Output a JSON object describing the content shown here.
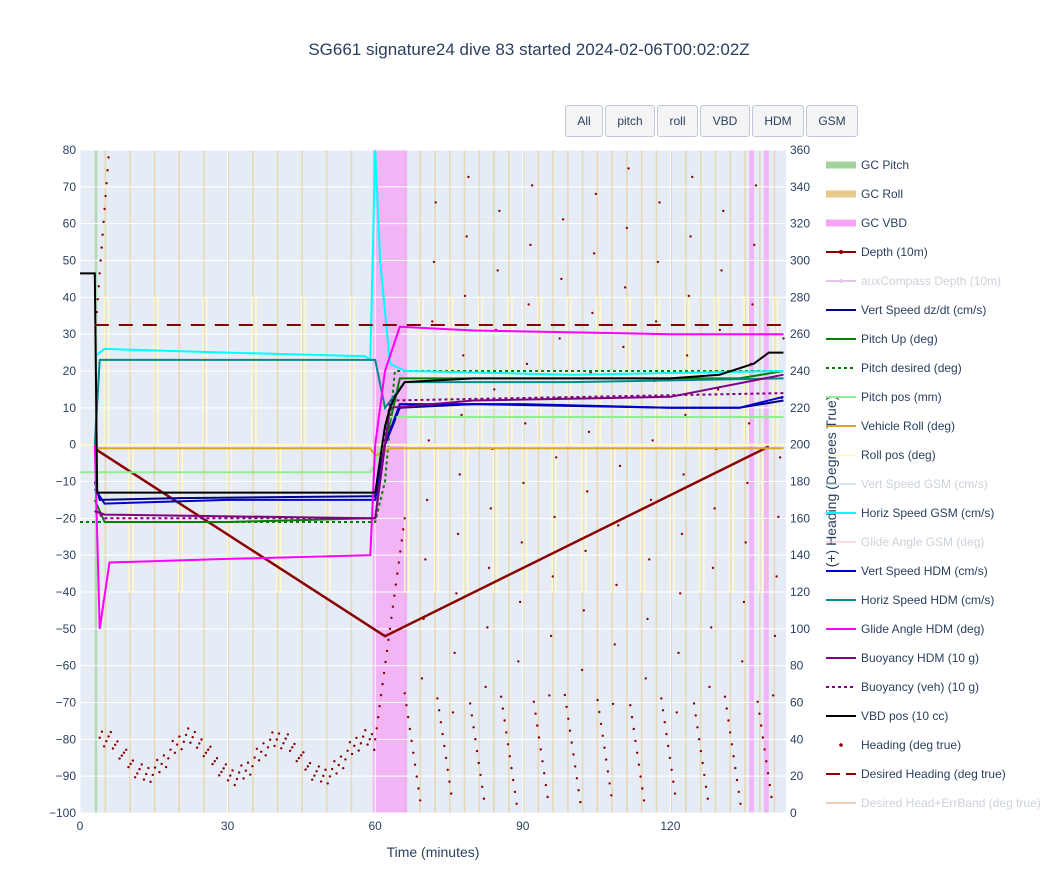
{
  "title": "SG661 signature24 dive 83 started 2024-02-06T00:02:02Z",
  "buttons": [
    {
      "label": "All",
      "w": 38
    },
    {
      "label": "pitch",
      "w": 50
    },
    {
      "label": "roll",
      "w": 41
    },
    {
      "label": "VBD",
      "w": 50
    },
    {
      "label": "HDM",
      "w": 52
    },
    {
      "label": "GSM",
      "w": 52
    }
  ],
  "chart_data": {
    "type": "line",
    "xlabel": "Time (minutes)",
    "ylabel_right": "(+) Heading (Degrees True)",
    "xlim": [
      0,
      143.5
    ],
    "ylim": [
      -100,
      80
    ],
    "y2lim": [
      0,
      360
    ],
    "xticks": [
      0,
      30,
      60,
      90,
      120
    ],
    "yticks": [
      -100,
      -90,
      -80,
      -70,
      -60,
      -50,
      -40,
      -30,
      -20,
      -10,
      0,
      10,
      20,
      30,
      40,
      50,
      60,
      70,
      80
    ],
    "y2ticks": [
      0,
      20,
      40,
      60,
      80,
      100,
      120,
      140,
      160,
      180,
      200,
      220,
      240,
      260,
      280,
      300,
      320,
      340,
      360
    ],
    "legend_position": "right",
    "series": [
      {
        "name": "GC Pitch",
        "color": "#a3d4a0",
        "style": "band",
        "visible": true
      },
      {
        "name": "GC Roll",
        "color": "#e8c98a",
        "style": "band",
        "visible": true
      },
      {
        "name": "GC VBD",
        "color": "#f4a6f4",
        "style": "band",
        "visible": true
      },
      {
        "name": "Depth (10m)",
        "color": "#8b0000",
        "style": "line-marker",
        "visible": true,
        "x": [
          3.5,
          62,
          140
        ],
        "y": [
          -1.5,
          -52,
          -0.5
        ]
      },
      {
        "name": "auxCompass Depth (10m)",
        "color": "#c58be0",
        "style": "line-marker",
        "visible": false
      },
      {
        "name": "Vert Speed dz/dt (cm/s)",
        "color": "#00008b",
        "style": "line",
        "visible": true,
        "x": [
          3,
          4,
          20,
          59,
          60,
          62,
          65,
          80,
          120,
          134,
          143
        ],
        "y": [
          -10,
          -15,
          -14.5,
          -14,
          -14,
          0,
          10,
          11,
          10,
          10,
          12
        ]
      },
      {
        "name": "Pitch Up (deg)",
        "color": "#008000",
        "style": "line",
        "visible": true,
        "x": [
          3,
          5,
          30,
          59,
          60,
          62,
          65,
          90,
          120,
          134,
          143
        ],
        "y": [
          -15,
          -21,
          -21,
          -20,
          -20,
          0,
          18,
          18,
          18,
          18,
          20
        ]
      },
      {
        "name": "Pitch desired (deg)",
        "color": "#008000",
        "style": "dot",
        "visible": true,
        "x": [
          0,
          3,
          60,
          62,
          64,
          143
        ],
        "y": [
          -21,
          -21,
          -21,
          -10,
          20,
          20
        ]
      },
      {
        "name": "Pitch pos (mm)",
        "color": "#90ee90",
        "style": "line",
        "visible": true,
        "x": [
          0,
          3,
          59,
          60,
          63,
          143
        ],
        "y": [
          -7.5,
          -7.5,
          -7.5,
          -5,
          7.5,
          7.5
        ]
      },
      {
        "name": "Vehicle Roll (deg)",
        "color": "#daa520",
        "style": "line",
        "visible": true,
        "x": [
          3,
          5,
          59,
          60,
          63,
          143
        ],
        "y": [
          -1,
          -1,
          -1,
          -3,
          -1,
          -1
        ]
      },
      {
        "name": "Roll pos (deg)",
        "color": "#fffacd",
        "style": "line",
        "visible": true,
        "x": [
          0,
          143
        ],
        "y": [
          0,
          0
        ]
      },
      {
        "name": "Vert Speed GSM (cm/s)",
        "color": "#add8e6",
        "style": "line",
        "visible": false
      },
      {
        "name": "Horiz Speed GSM (cm/s)",
        "color": "#00ffff",
        "style": "line",
        "visible": true,
        "x": [
          3,
          5,
          30,
          58,
          59,
          60,
          61,
          63,
          66,
          100,
          143
        ],
        "y": [
          24,
          26,
          25,
          24,
          23,
          80,
          50,
          22,
          20,
          19,
          20
        ]
      },
      {
        "name": "Glide Angle GSM (deg)",
        "color": "#ffb6c1",
        "style": "line",
        "visible": false
      },
      {
        "name": "Vert Speed HDM (cm/s)",
        "color": "#0000cd",
        "style": "line",
        "visible": true,
        "x": [
          3,
          5,
          30,
          59,
          60,
          62,
          65,
          90,
          120,
          134,
          143
        ],
        "y": [
          -12,
          -16,
          -15,
          -15,
          -15,
          0,
          11,
          11,
          10,
          10,
          13
        ]
      },
      {
        "name": "Horiz Speed HDM (cm/s)",
        "color": "#008b8b",
        "style": "line",
        "visible": true,
        "x": [
          3,
          4,
          30,
          59,
          60,
          62,
          66,
          100,
          143
        ],
        "y": [
          0,
          23,
          23,
          23,
          23,
          10,
          17,
          17,
          18
        ]
      },
      {
        "name": "Glide Angle HDM (deg)",
        "color": "#ff00ff",
        "style": "line",
        "visible": true,
        "x": [
          3,
          4,
          6,
          30,
          59,
          60,
          62,
          65,
          80,
          120,
          143
        ],
        "y": [
          0,
          -50,
          -32,
          -31,
          -30,
          0,
          20,
          32,
          31,
          30,
          30
        ]
      },
      {
        "name": "Buoyancy HDM (10 g)",
        "color": "#800080",
        "style": "line",
        "visible": true,
        "x": [
          3,
          5,
          59,
          60,
          63,
          80,
          120,
          143
        ],
        "y": [
          -18,
          -19,
          -20,
          -20,
          10,
          12,
          13,
          19
        ]
      },
      {
        "name": "Buoyancy (veh) (10 g)",
        "color": "#800080",
        "style": "dot",
        "visible": true,
        "x": [
          3,
          5,
          59,
          60,
          63,
          143
        ],
        "y": [
          -18,
          -20,
          -20,
          -20,
          12,
          14
        ]
      },
      {
        "name": "VBD pos (10 cc)",
        "color": "#000000",
        "style": "line",
        "visible": true,
        "x": [
          0,
          3,
          3.5,
          59,
          60,
          62,
          63,
          64,
          66,
          80,
          120,
          130,
          137,
          140,
          143
        ],
        "y": [
          46.5,
          46.5,
          -13,
          -13,
          -13,
          5,
          10,
          13,
          17,
          18,
          18,
          19,
          22,
          25,
          25
        ]
      },
      {
        "name": "Heading (deg true)",
        "color": "#8b0000",
        "style": "markers",
        "visible": true
      },
      {
        "name": "Desired Heading (deg true)",
        "color": "#8b0000",
        "style": "dash",
        "visible": true,
        "x": [
          3,
          143
        ],
        "y": [
          265,
          265
        ],
        "axis": "y2"
      },
      {
        "name": "Desired Head+ErrBand (deg true)",
        "color": "#e9967a",
        "style": "line",
        "visible": false
      }
    ],
    "gc_vbd_bands": [
      [
        59.5,
        66.5
      ],
      [
        136,
        137
      ],
      [
        139,
        140
      ]
    ],
    "gc_pitch_bands": [
      [
        3,
        3.5
      ]
    ],
    "gc_roll_starts": [
      5,
      10,
      15,
      20,
      25,
      30,
      35,
      40,
      45,
      50,
      55,
      66,
      69,
      72,
      75,
      78,
      81,
      84,
      87,
      90,
      93,
      96,
      99,
      102,
      105,
      108,
      111,
      114,
      117,
      120,
      123,
      126,
      129,
      132,
      135,
      138,
      141
    ]
  }
}
